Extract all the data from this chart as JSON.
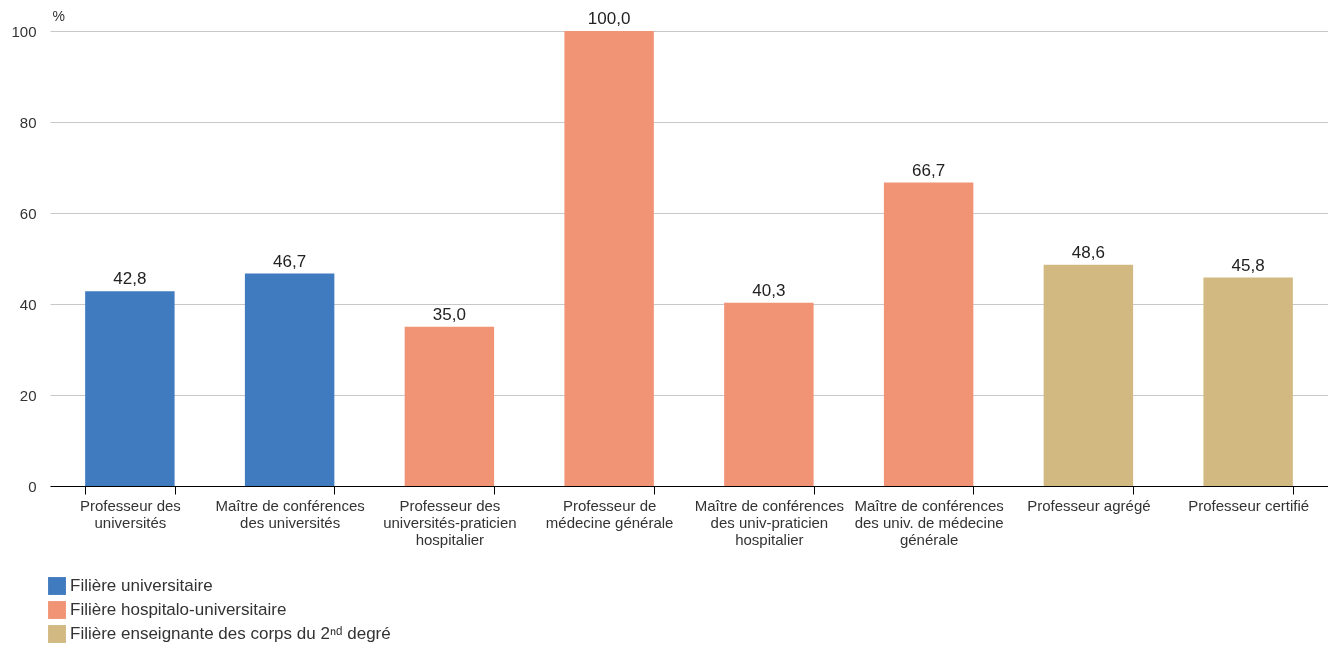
{
  "chart_data": {
    "type": "bar",
    "ylabel": "%",
    "categories": [
      "Professeur des universités",
      "Maître de conférences des universités",
      "Professeur des universités-praticien hospitalier",
      "Professeur de médecine générale",
      "Maître de conférences des univ-praticien hospitalier",
      "Maître de conférences des univ. de médecine générale",
      "Professeur agrégé",
      "Professeur certifié"
    ],
    "series": [
      {
        "name": "Filière universitaire",
        "color": "#417bbf",
        "values": [
          42.8,
          46.7,
          null,
          null,
          null,
          null,
          null,
          null
        ],
        "value_labels": [
          "42,8",
          "46,7",
          null,
          null,
          null,
          null,
          null,
          null
        ]
      },
      {
        "name": "Filière hospitalo-universitaire",
        "color": "#f19476",
        "values": [
          null,
          null,
          35.0,
          100.0,
          40.3,
          66.7,
          null,
          null
        ],
        "value_labels": [
          null,
          null,
          "35,0",
          "100,0",
          "40,3",
          "66,7",
          null,
          null
        ]
      },
      {
        "name": "Filière enseignante des corps du 2ⁿᵈ degré",
        "color": "#d2b982",
        "values": [
          null,
          null,
          null,
          null,
          null,
          null,
          48.6,
          45.8
        ],
        "value_labels": [
          null,
          null,
          null,
          null,
          null,
          null,
          "48,6",
          "45,8"
        ]
      }
    ],
    "ylim": [
      0,
      100
    ],
    "yticks": [
      0,
      20,
      40,
      60,
      80,
      100
    ],
    "grid": "y",
    "legend": "bottom left"
  }
}
